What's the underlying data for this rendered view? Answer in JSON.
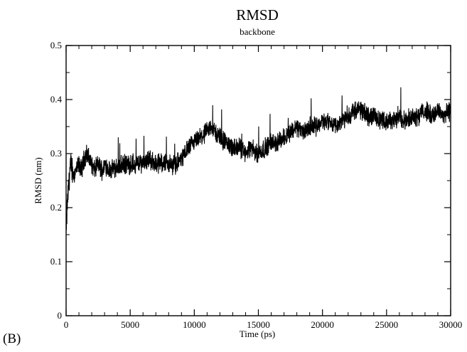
{
  "panel_label": "(B)",
  "chart_data": {
    "type": "line",
    "title": "RMSD",
    "subtitle": "backbone",
    "xlabel": "Time (ps)",
    "ylabel": "RMSD (nm)",
    "xlim": [
      0,
      30000
    ],
    "ylim": [
      0,
      0.5
    ],
    "x_ticks": [
      0,
      5000,
      10000,
      15000,
      20000,
      25000,
      30000
    ],
    "y_ticks": [
      0,
      0.1,
      0.2,
      0.3,
      0.4,
      0.5
    ],
    "x_tick_labels": [
      "0",
      "5000",
      "10000",
      "15000",
      "20000",
      "25000",
      "30000"
    ],
    "y_tick_labels": [
      "0",
      "0.1",
      "0.2",
      "0.3",
      "0.4",
      "0.5"
    ],
    "grid": false,
    "series_color": "#000000",
    "series": [
      {
        "x": [
          0,
          100,
          200,
          300,
          400,
          600,
          800,
          1000,
          1200,
          1400,
          1600,
          1800,
          2000,
          2200,
          2500,
          2800,
          3100,
          3300,
          3600,
          4000,
          4500,
          5000,
          5500,
          6000,
          6500,
          7000,
          7500,
          8000,
          8500,
          9000,
          9500,
          10000,
          10500,
          11000,
          11300,
          11600,
          12000,
          12500,
          13000,
          13500,
          14000,
          14500,
          15000,
          15500,
          16000,
          16500,
          17000,
          17500,
          18000,
          18500,
          19000,
          19500,
          20000,
          20500,
          21000,
          21500,
          22000,
          22500,
          23000,
          23500,
          24000,
          24500,
          25000,
          25500,
          26000,
          26500,
          27000,
          27500,
          28000,
          28500,
          29000,
          29500,
          30000
        ],
        "values": [
          0.15,
          0.21,
          0.24,
          0.27,
          0.28,
          0.26,
          0.27,
          0.28,
          0.27,
          0.29,
          0.3,
          0.29,
          0.28,
          0.27,
          0.28,
          0.27,
          0.28,
          0.27,
          0.27,
          0.275,
          0.28,
          0.28,
          0.28,
          0.285,
          0.29,
          0.28,
          0.285,
          0.28,
          0.28,
          0.29,
          0.31,
          0.32,
          0.33,
          0.34,
          0.35,
          0.34,
          0.33,
          0.32,
          0.31,
          0.31,
          0.3,
          0.31,
          0.3,
          0.31,
          0.32,
          0.32,
          0.33,
          0.34,
          0.35,
          0.34,
          0.35,
          0.35,
          0.36,
          0.36,
          0.35,
          0.36,
          0.37,
          0.38,
          0.38,
          0.37,
          0.37,
          0.36,
          0.36,
          0.36,
          0.37,
          0.36,
          0.37,
          0.37,
          0.38,
          0.37,
          0.38,
          0.37,
          0.38
        ]
      }
    ]
  }
}
